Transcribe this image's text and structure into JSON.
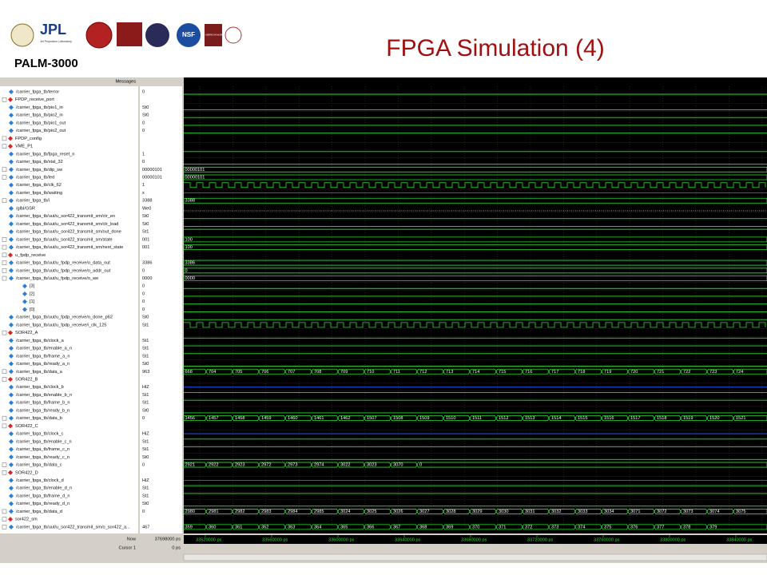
{
  "header": {
    "title": "FPGA Simulation  (4)",
    "project": "PALM-3000",
    "logos": [
      "JPL",
      "Jet Propulsion Laboratory",
      "NSF",
      "AMERICAN MUSEUM NATURAL HISTORY"
    ]
  },
  "wave": {
    "pane_title": "Messages",
    "rows": [
      {
        "name": "/carrier_fpga_tb/terror",
        "value": "0"
      },
      {
        "name": "FPDP_receive_port",
        "group": true
      },
      {
        "name": "/carrier_fpga_tb/pio1_in",
        "value": "St0"
      },
      {
        "name": "/carrier_fpga_tb/pio2_in",
        "value": "St0"
      },
      {
        "name": "/carrier_fpga_tb/pio1_out",
        "value": "0"
      },
      {
        "name": "/carrier_fpga_tb/pio2_out",
        "value": "0"
      },
      {
        "name": "FPDP_config",
        "group": true
      },
      {
        "name": "VME_P1",
        "group": true
      },
      {
        "name": "/carrier_fpga_tb/fpga_reset_n",
        "value": "1"
      },
      {
        "name": "/carrier_fpga_tb/xtal_32",
        "value": "0"
      },
      {
        "name": "/carrier_fpga_tb/dip_sw",
        "value": "00000101",
        "bus": [
          "00000101"
        ]
      },
      {
        "name": "/carrier_fpga_tb/led",
        "value": "00000101",
        "bus": [
          "00000101"
        ]
      },
      {
        "name": "/carrier_fpga_tb/clk_62",
        "value": "1",
        "clock": true
      },
      {
        "name": "/carrier_fpga_tb/waiting",
        "value": "x"
      },
      {
        "name": "/carrier_fpga_tb/i",
        "value": "3388",
        "bus": [
          "3388"
        ]
      },
      {
        "name": "/glbl/GSR",
        "value": "We0"
      },
      {
        "name": "/carrier_fpga_tb/uut/u_sor422_transmit_sm/ctr_en",
        "value": "St0"
      },
      {
        "name": "/carrier_fpga_tb/uut/u_sor422_transmit_sm/ctr_load",
        "value": "St0"
      },
      {
        "name": "/carrier_fpga_tb/uut/u_sor422_transmit_sm/out_done",
        "value": "St1"
      },
      {
        "name": "/carrier_fpga_tb/uut/u_sor422_transmit_sm/state",
        "value": "001",
        "bus": [
          "100"
        ]
      },
      {
        "name": "/carrier_fpga_tb/uut/u_sor422_transmit_sm/next_state",
        "value": "001",
        "bus": [
          "100"
        ]
      },
      {
        "name": "u_fpdp_receive",
        "group": true
      },
      {
        "name": "/carrier_fpga_tb/uut/u_fpdp_receive/o_data_out",
        "value": "3386",
        "bus": [
          "3386"
        ]
      },
      {
        "name": "/carrier_fpga_tb/uut/u_fpdp_receive/o_addr_out",
        "value": "0",
        "bus": [
          "0"
        ]
      },
      {
        "name": "/carrier_fpga_tb/uut/u_fpdp_receive/o_we",
        "value": "0000",
        "bus": [
          "0000"
        ]
      },
      {
        "name": "[3]",
        "value": "0"
      },
      {
        "name": "[2]",
        "value": "0"
      },
      {
        "name": "[1]",
        "value": "0"
      },
      {
        "name": "[0]",
        "value": "0"
      },
      {
        "name": "/carrier_fpga_tb/uut/u_fpdp_receive/o_done_p62",
        "value": "St0"
      },
      {
        "name": "/carrier_fpga_tb/uut/u_fpdp_receive/i_clk_125",
        "value": "St1",
        "clock": true
      },
      {
        "name": "SOR422_A",
        "group": true
      },
      {
        "name": "/carrier_fpga_tb/clock_a",
        "value": "St1"
      },
      {
        "name": "/carrier_fpga_tb/enable_a_n",
        "value": "St1"
      },
      {
        "name": "/carrier_fpga_tb/frame_a_n",
        "value": "St1"
      },
      {
        "name": "/carrier_fpga_tb/ready_a_n",
        "value": "St0"
      },
      {
        "name": "/carrier_fpga_tb/data_a",
        "value": "963",
        "bus": [
          "668",
          "704",
          "705",
          "706",
          "707",
          "708",
          "709",
          "710",
          "711",
          "712",
          "713",
          "714",
          "715",
          "716",
          "717",
          "718",
          "719",
          "720",
          "721",
          "722",
          "723",
          "724"
        ]
      },
      {
        "name": "SOR422_B",
        "group": true
      },
      {
        "name": "/carrier_fpga_tb/clock_b",
        "value": "HiZ"
      },
      {
        "name": "/carrier_fpga_tb/enable_b_n",
        "value": "St1"
      },
      {
        "name": "/carrier_fpga_tb/frame_b_n",
        "value": "St1"
      },
      {
        "name": "/carrier_fpga_tb/ready_b_n",
        "value": "St0"
      },
      {
        "name": "/carrier_fpga_tb/data_b",
        "value": "0",
        "bus": [
          "1456",
          "1457",
          "1458",
          "1459",
          "1460",
          "1461",
          "1462",
          "1507",
          "1508",
          "1509",
          "1510",
          "1511",
          "1512",
          "1513",
          "1514",
          "1515",
          "1516",
          "1517",
          "1518",
          "1519",
          "1520",
          "1521"
        ]
      },
      {
        "name": "SOR422_C",
        "group": true
      },
      {
        "name": "/carrier_fpga_tb/clock_c",
        "value": "HiZ"
      },
      {
        "name": "/carrier_fpga_tb/enable_c_n",
        "value": "St1"
      },
      {
        "name": "/carrier_fpga_tb/frame_c_n",
        "value": "St1"
      },
      {
        "name": "/carrier_fpga_tb/ready_c_n",
        "value": "St0"
      },
      {
        "name": "/carrier_fpga_tb/data_c",
        "value": "0",
        "bus": [
          "2921",
          "2922",
          "2923",
          "2972",
          "2973",
          "2974",
          "3022",
          "3023",
          "3070",
          "0"
        ]
      },
      {
        "name": "SOR422_D",
        "group": true
      },
      {
        "name": "/carrier_fpga_tb/clock_d",
        "value": "HiZ"
      },
      {
        "name": "/carrier_fpga_tb/enable_d_n",
        "value": "St1"
      },
      {
        "name": "/carrier_fpga_tb/frame_d_n",
        "value": "St1"
      },
      {
        "name": "/carrier_fpga_tb/ready_d_n",
        "value": "St0"
      },
      {
        "name": "/carrier_fpga_tb/data_d",
        "value": "0",
        "bus": [
          "2980",
          "2981",
          "2982",
          "2983",
          "2984",
          "2985",
          "3024",
          "3025",
          "3026",
          "3027",
          "3028",
          "3029",
          "3030",
          "3031",
          "3032",
          "3033",
          "3034",
          "3071",
          "3072",
          "3073",
          "3074",
          "3075"
        ]
      },
      {
        "name": "sor422_sm",
        "group": true
      },
      {
        "name": "/carrier_fpga_tb/uut/u_sor422_transmit_sm/o_sor422_a...",
        "value": "467",
        "bus": [
          "359",
          "360",
          "361",
          "362",
          "363",
          "364",
          "365",
          "366",
          "367",
          "368",
          "369",
          "370",
          "371",
          "372",
          "373",
          "374",
          "375",
          "376",
          "377",
          "378",
          "379"
        ]
      }
    ],
    "now_label": "Now",
    "now_value": "37698000 ps",
    "cursor_label": "Cursor 1",
    "cursor_value": "0 ps",
    "timeline": [
      "33520000 ps",
      "33560000 ps",
      "33600000 ps",
      "33640000 ps",
      "33680000 ps",
      "33720000 ps",
      "33760000 ps",
      "33800000 ps",
      "33840000 ps"
    ]
  }
}
